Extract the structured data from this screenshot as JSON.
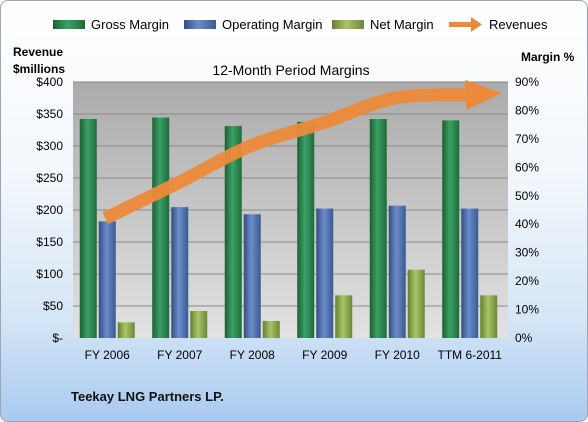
{
  "chart_data": {
    "type": "bar",
    "title": "12-Month Period Margins",
    "left_axis_label": [
      "Revenue",
      "$millions"
    ],
    "right_axis_label": "Margin %",
    "categories": [
      "FY 2006",
      "FY 2007",
      "FY 2008",
      "FY 2009",
      "FY 2010",
      "TTM 6-2011"
    ],
    "left_ticks": [
      "$-",
      "$50",
      "$100",
      "$150",
      "$200",
      "$250",
      "$300",
      "$350",
      "$400"
    ],
    "right_ticks": [
      "0%",
      "10%",
      "20%",
      "30%",
      "40%",
      "50%",
      "60%",
      "70%",
      "80%",
      "90%"
    ],
    "ylim_left": [
      0,
      400
    ],
    "ylim_right": [
      0,
      90
    ],
    "grid": true,
    "legend_position": "top",
    "series": [
      {
        "name": "Gross Margin",
        "axis": "right",
        "color": "#2e8b57",
        "values": [
          77,
          77.5,
          74.5,
          76,
          77,
          76.5
        ]
      },
      {
        "name": "Operating Margin",
        "axis": "right",
        "color": "#4f74b3",
        "values": [
          41,
          46,
          43.5,
          45.5,
          46.5,
          45.5
        ]
      },
      {
        "name": "Net Margin",
        "axis": "right",
        "color": "#8aa94a",
        "values": [
          5.5,
          9.5,
          6,
          15,
          24,
          15
        ]
      },
      {
        "name": "Revenues",
        "axis": "left",
        "type": "line",
        "color": "#ed8a3a",
        "values": [
          187,
          242,
          300,
          336,
          375,
          380
        ]
      }
    ]
  },
  "company_name": "Teekay LNG Partners LP."
}
